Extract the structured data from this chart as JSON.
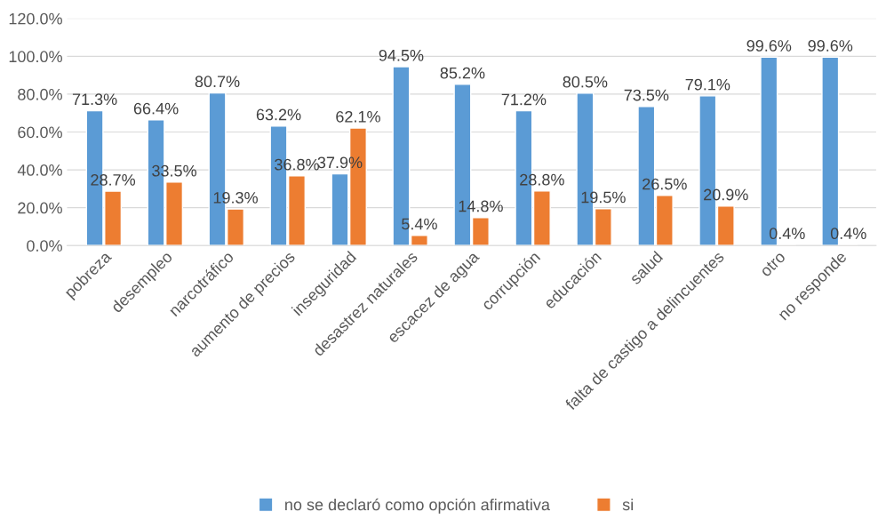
{
  "chart_data": {
    "type": "bar",
    "categories": [
      "pobreza",
      "desempleo",
      "narcotráfico",
      "aumento de precios",
      "inseguridad",
      "desastrez naturales",
      "escacez de agua",
      "corrupción",
      "educación",
      "salud",
      "falta de castigo a delincuentes",
      "otro",
      "no responde"
    ],
    "series": [
      {
        "name": "no se declaró como opción afirmativa",
        "color": "#5b9bd5",
        "values": [
          71.3,
          66.4,
          80.7,
          63.2,
          37.9,
          94.5,
          85.2,
          71.2,
          80.5,
          73.5,
          79.1,
          99.6,
          99.6
        ],
        "value_labels": [
          "71.3%",
          "66.4%",
          "80.7%",
          "63.2%",
          "37.9%",
          "94.5%",
          "85.2%",
          "71.2%",
          "80.5%",
          "73.5%",
          "79.1%",
          "99.6%",
          "99.6%"
        ]
      },
      {
        "name": "si",
        "color": "#ed7d31",
        "values": [
          28.7,
          33.5,
          19.3,
          36.8,
          62.1,
          5.4,
          14.8,
          28.8,
          19.5,
          26.5,
          20.9,
          0.4,
          0.4
        ],
        "value_labels": [
          "28.7%",
          "33.5%",
          "19.3%",
          "36.8%",
          "62.1%",
          "5.4%",
          "14.8%",
          "28.8%",
          "19.5%",
          "26.5%",
          "20.9%",
          "0.4%",
          "0.4%"
        ]
      }
    ],
    "ylim": [
      0,
      120
    ],
    "yticks": [
      {
        "value": 0,
        "label": "0.0%"
      },
      {
        "value": 20,
        "label": "20.0%"
      },
      {
        "value": 40,
        "label": "40.0%"
      },
      {
        "value": 60,
        "label": "60.0%"
      },
      {
        "value": 80,
        "label": "80.0%"
      },
      {
        "value": 100,
        "label": "100.0%"
      },
      {
        "value": 120,
        "label": "120.0%"
      }
    ],
    "grid": "y",
    "legend": "bottom"
  }
}
